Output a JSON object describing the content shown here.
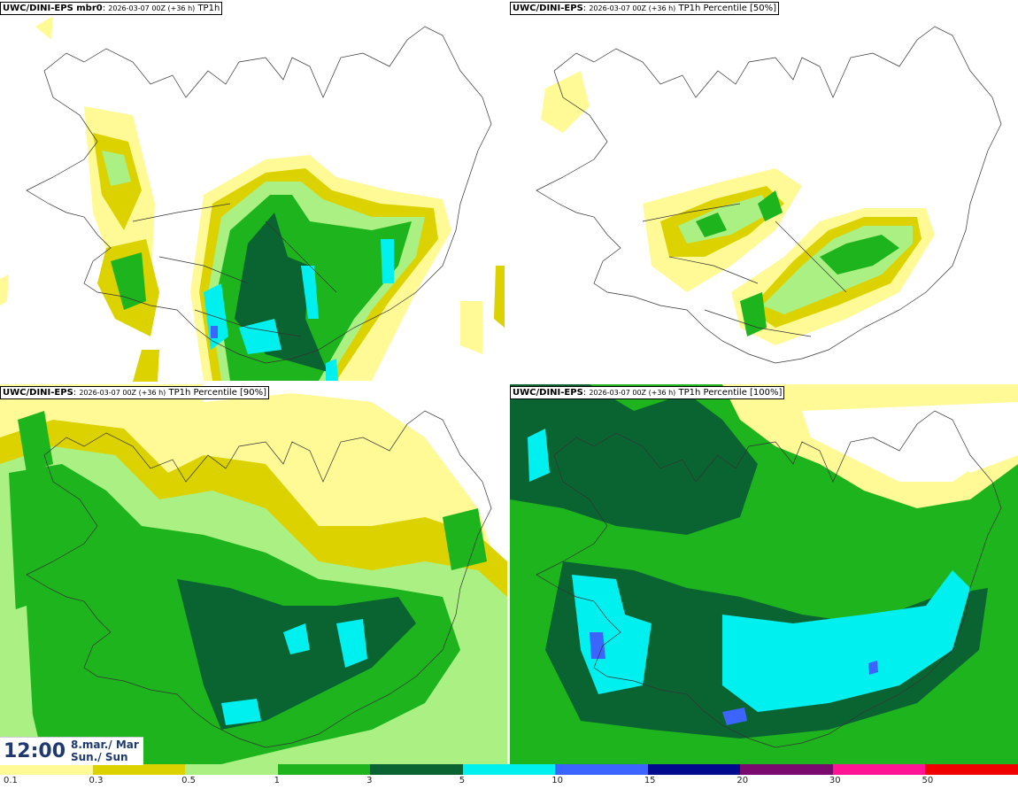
{
  "panels": [
    {
      "model": "UWC/DINI-EPS mbr0",
      "run": "2026-03-07 00Z (+36 h)",
      "variable": "TP1h"
    },
    {
      "model": "UWC/DINI-EPS",
      "run": "2026-03-07 00Z (+36 h)",
      "variable": "TP1h Percentile [50%]"
    },
    {
      "model": "UWC/DINI-EPS",
      "run": "2026-03-07 00Z (+36 h)",
      "variable": "TP1h Percentile [90%]"
    },
    {
      "model": "UWC/DINI-EPS",
      "run": "2026-03-07 00Z (+36 h)",
      "variable": "TP1h Percentile [100%]"
    }
  ],
  "valid_time": {
    "time": "12:00",
    "date_line": "8.mar./ Mar",
    "day_line": "Sun./ Sun"
  },
  "colorbar": {
    "colors": [
      "#fffa96",
      "#dcd200",
      "#aaf082",
      "#1eb41e",
      "#0a6432",
      "#00f0f0",
      "#3c64ff",
      "#000a8c",
      "#7a0a6e",
      "#ff1493",
      "#f00000"
    ],
    "ticks": [
      "0.1",
      "0.3",
      "0.5",
      "1",
      "3",
      "5",
      "10",
      "15",
      "20",
      "30",
      "50"
    ]
  }
}
